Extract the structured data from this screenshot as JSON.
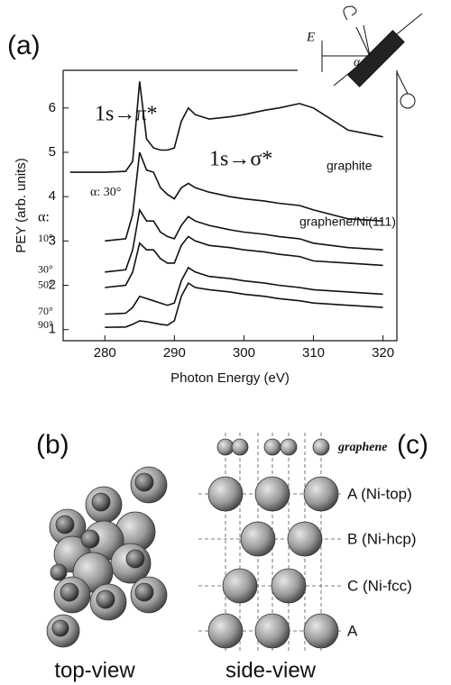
{
  "chart_data": {
    "type": "line",
    "panel_label": "(a)",
    "x_label": "Photon Energy (eV)",
    "y_label": "PEY (arb. units)",
    "x": [
      275,
      280,
      283,
      284,
      285,
      286,
      287,
      288,
      289,
      290,
      291,
      292,
      293,
      295,
      298,
      300,
      303,
      305,
      308,
      310,
      315,
      320
    ],
    "xlim": [
      274,
      322
    ],
    "ylim": [
      0.75,
      6.85
    ],
    "xticks": [
      280,
      290,
      300,
      310,
      320
    ],
    "yticks": [
      1,
      2,
      3,
      4,
      5,
      6
    ],
    "series": [
      {
        "name": "graphite",
        "color": "#111111",
        "values": [
          4.55,
          4.55,
          4.57,
          4.8,
          6.6,
          5.3,
          5.1,
          5.05,
          5.05,
          5.1,
          5.7,
          6.0,
          5.85,
          5.75,
          5.8,
          5.85,
          5.95,
          6.0,
          6.1,
          6.0,
          5.5,
          5.35
        ]
      },
      {
        "name": "10°",
        "color": "#111111",
        "values": [
          null,
          3.0,
          3.05,
          3.6,
          5.0,
          4.6,
          4.55,
          4.2,
          4.05,
          3.95,
          4.2,
          4.3,
          4.2,
          4.1,
          4.0,
          3.95,
          3.9,
          3.85,
          3.8,
          3.7,
          3.5,
          3.45
        ]
      },
      {
        "name": "30°",
        "color": "#111111",
        "values": [
          null,
          2.3,
          2.35,
          2.8,
          3.7,
          3.45,
          3.45,
          3.2,
          3.1,
          3.05,
          3.35,
          3.55,
          3.45,
          3.35,
          3.25,
          3.2,
          3.15,
          3.1,
          3.05,
          2.95,
          2.85,
          2.8
        ]
      },
      {
        "name": "50°",
        "color": "#111111",
        "values": [
          null,
          1.95,
          2.0,
          2.3,
          2.95,
          2.8,
          2.8,
          2.6,
          2.5,
          2.5,
          2.9,
          3.1,
          3.0,
          2.9,
          2.85,
          2.8,
          2.75,
          2.7,
          2.65,
          2.55,
          2.5,
          2.45
        ]
      },
      {
        "name": "70°",
        "color": "#111111",
        "values": [
          null,
          1.35,
          1.37,
          1.5,
          1.75,
          1.7,
          1.65,
          1.6,
          1.55,
          1.6,
          2.1,
          2.4,
          2.3,
          2.2,
          2.15,
          2.1,
          2.05,
          2.0,
          1.95,
          1.9,
          1.85,
          1.8
        ]
      },
      {
        "name": "90°",
        "color": "#111111",
        "values": [
          null,
          1.05,
          1.06,
          1.12,
          1.2,
          1.18,
          1.15,
          1.12,
          1.1,
          1.2,
          1.75,
          2.05,
          1.95,
          1.9,
          1.85,
          1.8,
          1.75,
          1.7,
          1.65,
          1.6,
          1.55,
          1.5
        ]
      }
    ],
    "annotations": {
      "pi": "1s→π*",
      "sigma": "1s→σ*",
      "graphite": "graphite",
      "graphite_angle": "α: 30°",
      "graphene": "graphene/Ni(111)",
      "alpha": "α:"
    },
    "inset": {
      "field": "E",
      "angle": "α"
    }
  },
  "panels": {
    "b": {
      "label": "(b)",
      "caption": "top-view"
    },
    "c": {
      "label": "(c)",
      "caption": "side-view",
      "graphene": "graphene",
      "rows": [
        "A (Ni-top)",
        "B (Ni-hcp)",
        "C (Ni-fcc)",
        "A"
      ]
    }
  }
}
